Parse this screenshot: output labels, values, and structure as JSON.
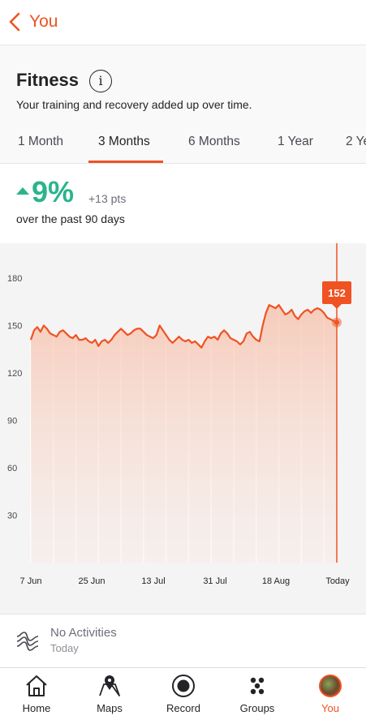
{
  "topbar": {
    "back_label": "You"
  },
  "header": {
    "title": "Fitness",
    "subtitle": "Your training and recovery added up over time."
  },
  "tabs": [
    {
      "label": "1 Month",
      "active": false
    },
    {
      "label": "3 Months",
      "active": true
    },
    {
      "label": "6 Months",
      "active": false
    },
    {
      "label": "1 Year",
      "active": false
    },
    {
      "label": "2 Ye",
      "active": false
    }
  ],
  "stats": {
    "change_percent": "9%",
    "change_points": "+13 pts",
    "period": "over the past 90 days"
  },
  "colors": {
    "accent": "#f05222",
    "positive": "#2bb48c"
  },
  "chart_data": {
    "type": "area",
    "title": "",
    "xlabel": "",
    "ylabel": "",
    "ylim": [
      0,
      180
    ],
    "yticks": [
      30,
      60,
      90,
      120,
      150,
      180
    ],
    "xticks": [
      "7 Jun",
      "25 Jun",
      "13 Jul",
      "31 Jul",
      "18 Aug",
      "Today"
    ],
    "selected_value": "152",
    "grid": false,
    "series": [
      {
        "name": "",
        "values": [
          141,
          147,
          149,
          146,
          150,
          148,
          145,
          144,
          143,
          146,
          147,
          145,
          143,
          142,
          144,
          141,
          141,
          142,
          140,
          139,
          141,
          137,
          140,
          141,
          139,
          141,
          144,
          146,
          148,
          146,
          144,
          145,
          147,
          148,
          148,
          146,
          144,
          143,
          142,
          144,
          150,
          147,
          144,
          141,
          139,
          141,
          143,
          141,
          140,
          141,
          139,
          140,
          138,
          136,
          140,
          143,
          142,
          143,
          141,
          145,
          147,
          145,
          142,
          141,
          140,
          138,
          140,
          145,
          146,
          143,
          141,
          140,
          150,
          158,
          163,
          162,
          161,
          163,
          160,
          157,
          158,
          160,
          156,
          154,
          157,
          159,
          160,
          158,
          160,
          161,
          160,
          158,
          155,
          154,
          153,
          152
        ]
      }
    ]
  },
  "activity": {
    "title": "No Activities",
    "subtitle": "Today"
  },
  "nav": [
    {
      "label": "Home",
      "icon": "home-icon"
    },
    {
      "label": "Maps",
      "icon": "map-icon"
    },
    {
      "label": "Record",
      "icon": "record-icon"
    },
    {
      "label": "Groups",
      "icon": "groups-icon"
    },
    {
      "label": "You",
      "icon": "avatar-icon",
      "active": true
    }
  ]
}
